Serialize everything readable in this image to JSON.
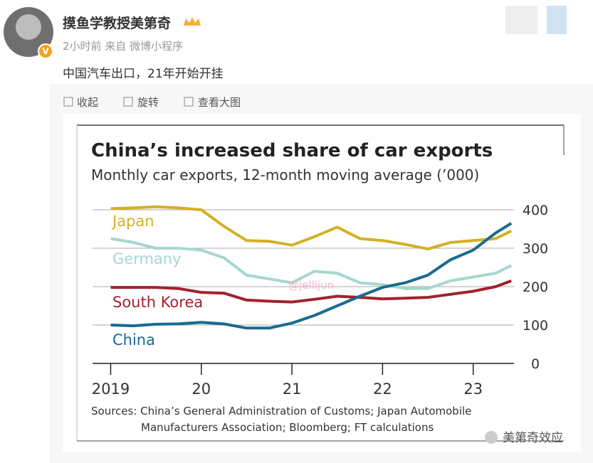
{
  "post": {
    "author": "摸鱼学教授美第奇",
    "meta": "2小时前 来自 微博小程序",
    "text": "中国汽车出口，21年开始开挂",
    "actions": [
      "收起",
      "旋转",
      "查看大图"
    ],
    "watermarks": [
      "@jellijun",
      "美第奇效应"
    ]
  },
  "chart_data": {
    "type": "line",
    "title": "China’s increased share of car exports",
    "subtitle": "Monthly car exports, 12-month moving average (’000)",
    "x": [
      2019,
      2019.25,
      2019.5,
      2019.75,
      2020,
      2020.25,
      2020.5,
      2020.75,
      2021,
      2021.25,
      2021.5,
      2021.75,
      2022,
      2022.25,
      2022.5,
      2022.75,
      2023,
      2023.25,
      2023.42
    ],
    "series": [
      {
        "name": "Japan",
        "color": "#d4b027",
        "values": [
          403,
          405,
          408,
          405,
          400,
          357,
          320,
          318,
          308,
          330,
          355,
          325,
          320,
          310,
          298,
          315,
          320,
          325,
          345
        ]
      },
      {
        "name": "Germany",
        "color": "#a6d7cf",
        "values": [
          325,
          315,
          300,
          300,
          295,
          275,
          230,
          220,
          210,
          240,
          235,
          210,
          205,
          195,
          195,
          215,
          225,
          235,
          255
        ]
      },
      {
        "name": "South Korea",
        "color": "#a3212e",
        "values": [
          198,
          198,
          198,
          195,
          185,
          183,
          165,
          162,
          160,
          167,
          175,
          172,
          168,
          170,
          172,
          180,
          188,
          200,
          215
        ]
      },
      {
        "name": "China",
        "color": "#1a6b8f",
        "values": [
          100,
          98,
          102,
          103,
          107,
          103,
          92,
          92,
          105,
          125,
          150,
          175,
          198,
          210,
          230,
          270,
          295,
          340,
          365
        ]
      }
    ],
    "xlim": [
      2018.8,
      2023.45
    ],
    "xticks": [
      2019,
      {
        "value": 2020,
        "label": "20"
      },
      {
        "value": 2021,
        "label": "21"
      },
      {
        "value": 2022,
        "label": "22"
      },
      {
        "value": 2023,
        "label": "23"
      }
    ],
    "ylim": [
      0,
      400
    ],
    "yticks": [
      0,
      100,
      200,
      300,
      400
    ],
    "grid": true,
    "source": [
      "Sources: China’s General Administration of Customs; Japan Automobile",
      "Manufacturers Association; Bloomberg; FT calculations"
    ]
  }
}
